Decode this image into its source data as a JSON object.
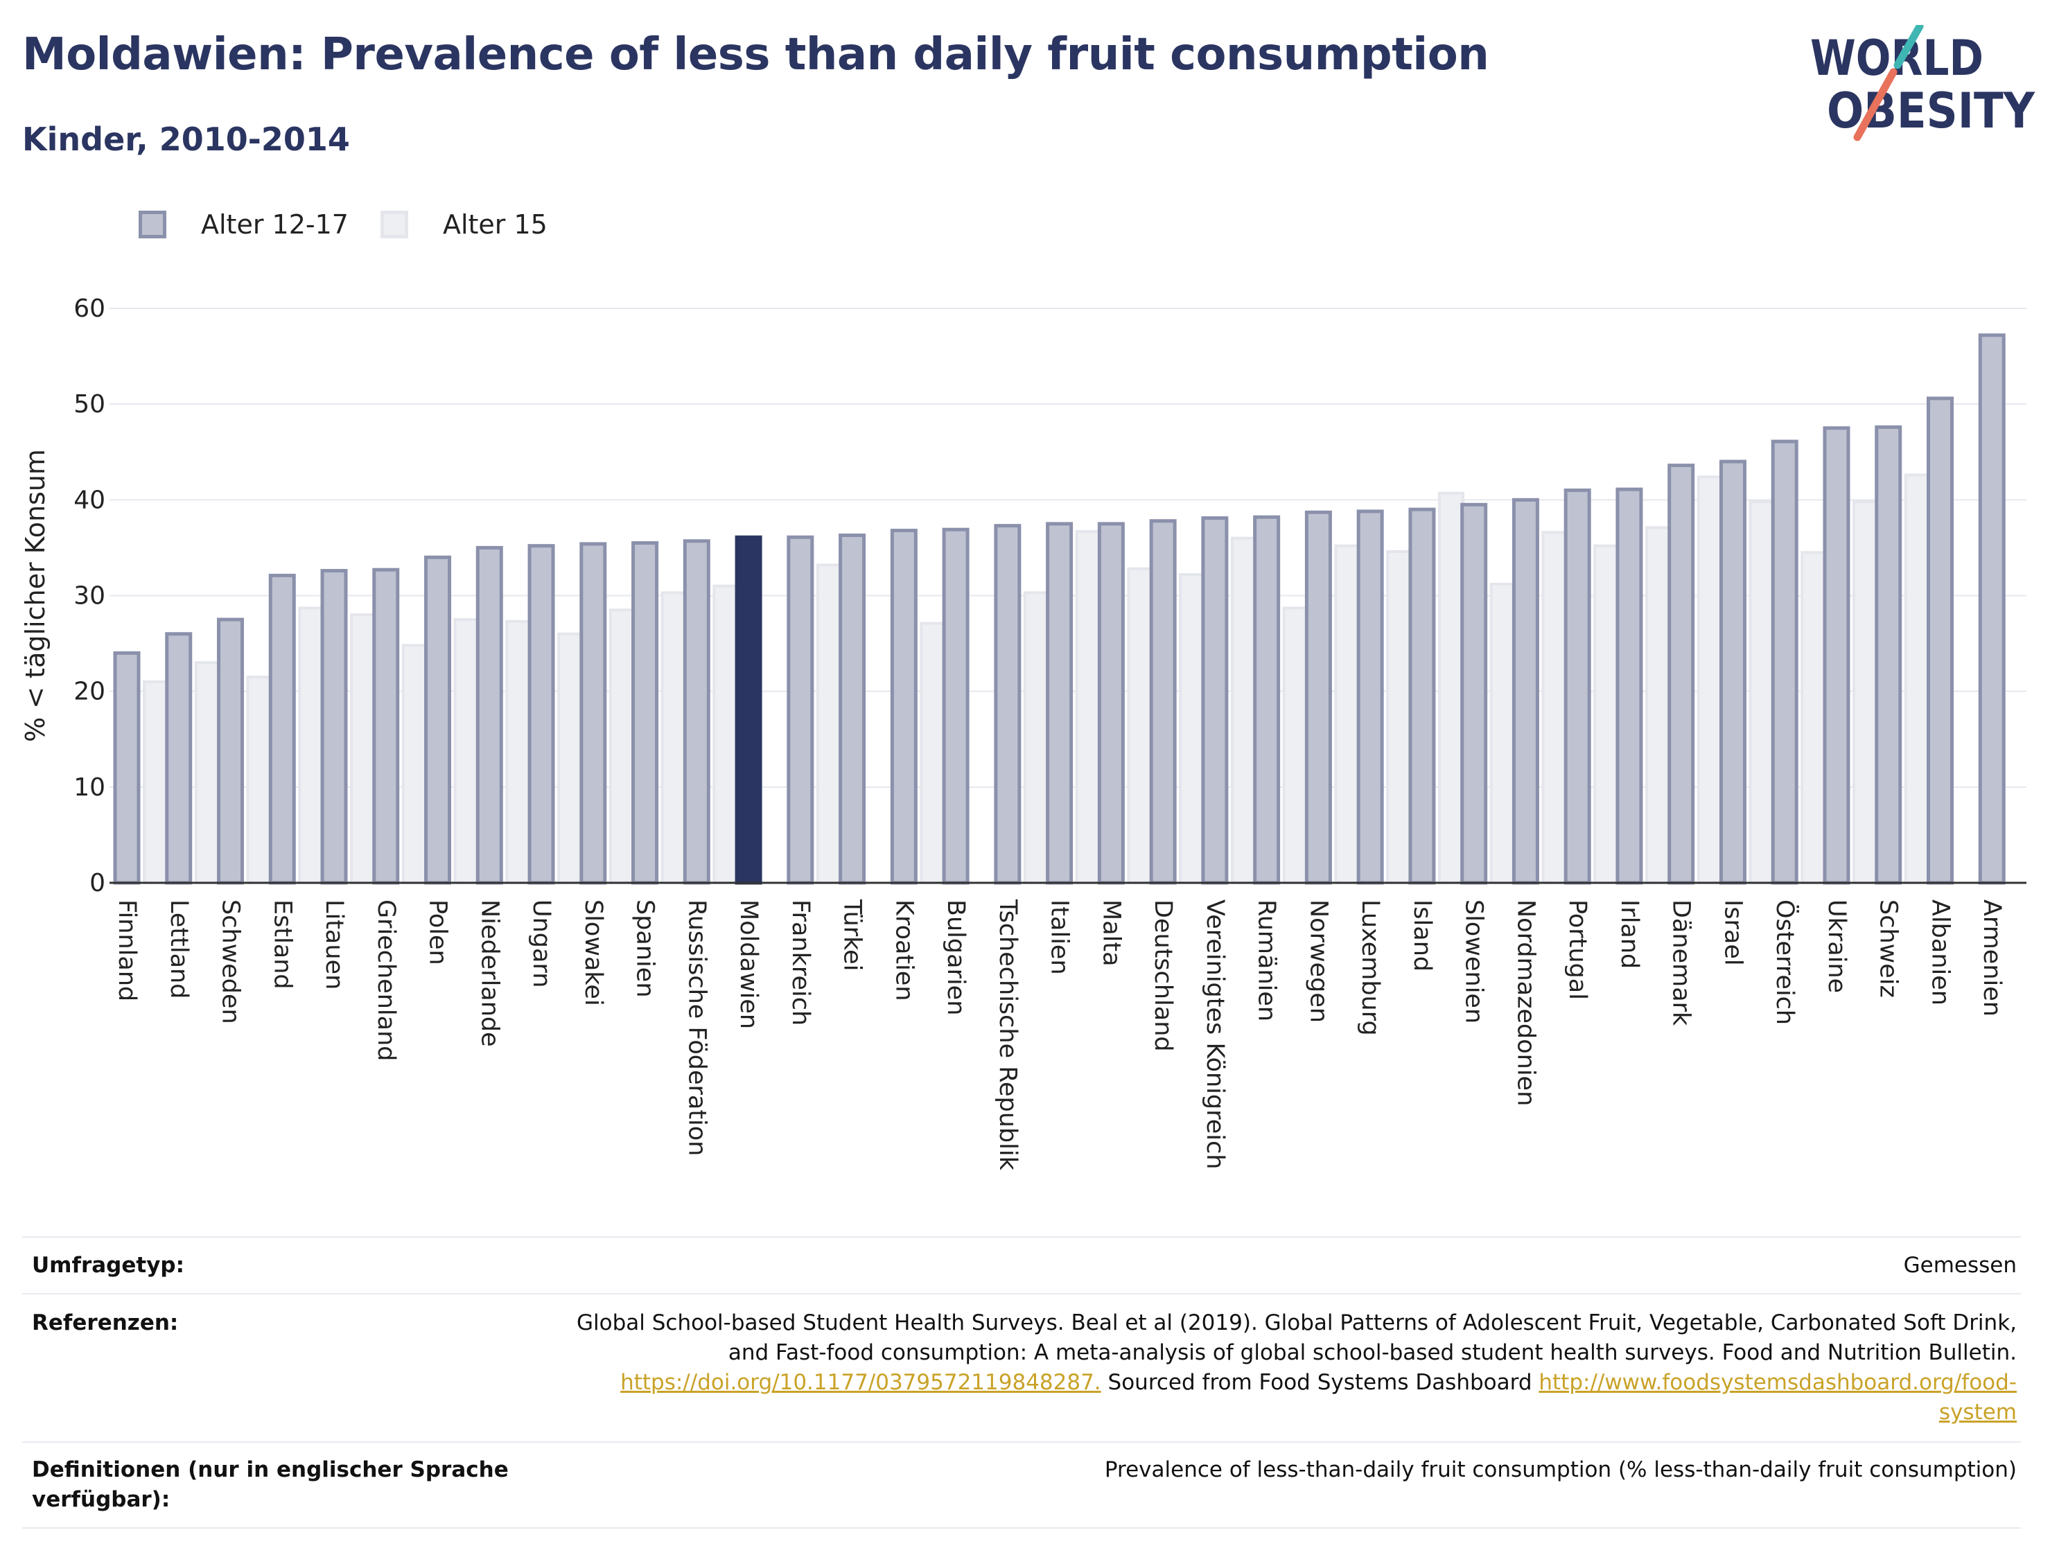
{
  "header": {
    "title": "Moldawien: Prevalence of less than daily fruit consumption",
    "subtitle": "Kinder, 2010-2014"
  },
  "logo": {
    "line1": "WORLD",
    "line2": "OBESITY"
  },
  "colors": {
    "series1_fill": "#bfc2d1",
    "series1_stroke": "#8b90ab",
    "series2_fill": "#eeeff3",
    "series2_stroke": "#e4e6ec",
    "highlight": "#2b3561",
    "accent_teal": "#3fb6b3",
    "accent_coral": "#e8725b"
  },
  "chart_data": {
    "type": "bar",
    "ylabel": "% < täglicher Konsum",
    "xlabel": "",
    "ylim": [
      0,
      60
    ],
    "yticks": [
      0,
      10,
      20,
      30,
      40,
      50,
      60
    ],
    "grid": true,
    "legend_position": "top-left",
    "highlight_category": "Moldawien",
    "categories": [
      "Finnland",
      "Lettland",
      "Schweden",
      "Estland",
      "Litauen",
      "Griechenland",
      "Polen",
      "Niederlande",
      "Ungarn",
      "Slowakei",
      "Spanien",
      "Russische Föderation",
      "Moldawien",
      "Frankreich",
      "Türkei",
      "Kroatien",
      "Bulgarien",
      "Tschechische Republik",
      "Italien",
      "Malta",
      "Deutschland",
      "Vereinigtes Königreich",
      "Rumänien",
      "Norwegen",
      "Luxemburg",
      "Island",
      "Slowenien",
      "Nordmazedonien",
      "Portugal",
      "Irland",
      "Dänemark",
      "Israel",
      "Österreich",
      "Ukraine",
      "Schweiz",
      "Albanien",
      "Armenien"
    ],
    "series": [
      {
        "name": "Alter 12-17",
        "values": [
          24.0,
          26.0,
          27.5,
          32.1,
          32.6,
          32.7,
          34.0,
          35.0,
          35.2,
          35.4,
          35.5,
          35.7,
          36.1,
          36.1,
          36.3,
          36.8,
          36.9,
          37.3,
          37.5,
          37.5,
          37.8,
          38.1,
          38.2,
          38.7,
          38.8,
          39.0,
          39.5,
          40.0,
          41.0,
          41.1,
          43.6,
          44.0,
          46.1,
          47.5,
          47.6,
          50.6,
          57.2
        ]
      },
      {
        "name": "Alter 15",
        "values": [
          21.0,
          23.0,
          21.5,
          28.7,
          28.0,
          24.8,
          27.5,
          27.3,
          26.0,
          28.5,
          30.3,
          31.0,
          null,
          33.2,
          null,
          27.1,
          null,
          30.3,
          36.7,
          32.8,
          32.2,
          36.0,
          28.7,
          35.2,
          34.6,
          40.7,
          31.2,
          36.6,
          35.2,
          37.1,
          42.4,
          39.8,
          34.5,
          39.8,
          42.6,
          null,
          null
        ]
      }
    ]
  },
  "info": {
    "survey_type_label": "Umfragetyp:",
    "survey_type_value": "Gemessen",
    "references_label": "Referenzen:",
    "references_text_1": "Global School-based Student Health Surveys. Beal et al (2019). Global Patterns of Adolescent Fruit, Vegetable, Carbonated Soft Drink,",
    "references_text_2": "and Fast-food consumption: A meta-analysis of global school-based student health surveys. Food and Nutrition Bulletin.",
    "references_link_1": "https://doi.org/10.1177/0379572119848287.",
    "references_text_3": " Sourced from Food Systems Dashboard ",
    "references_link_2a": "http://www.foodsystemsdashboard.org/food-",
    "references_link_2b": "system",
    "definitions_label_1": "Definitionen (nur in englischer Sprache",
    "definitions_label_2": "verfügbar):",
    "definitions_value": "Prevalence of less-than-daily fruit consumption (% less-than-daily fruit consumption)"
  }
}
